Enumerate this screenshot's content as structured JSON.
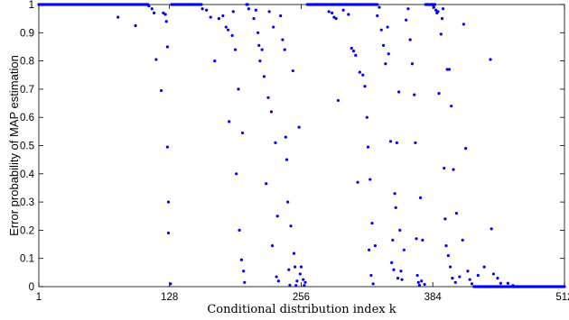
{
  "chart_data": {
    "type": "scatter",
    "title": "",
    "xlabel": "Conditional distribution index k",
    "ylabel": "Error probability of MAP estimation",
    "xlim": [
      1,
      512
    ],
    "ylim": [
      0,
      1
    ],
    "xticks": [
      1,
      128,
      256,
      384,
      512
    ],
    "yticks": [
      0,
      0.1,
      0.2,
      0.3,
      0.4,
      0.5,
      0.6,
      0.7,
      0.8,
      0.9,
      1
    ],
    "grid": false,
    "marker_color": "#0000ff",
    "series": [
      {
        "points": [
          [
            78,
            0.955
          ],
          [
            95,
            0.925
          ],
          [
            108,
            0.995
          ],
          [
            111,
            0.985
          ],
          [
            113,
            0.97
          ],
          [
            115,
            0.805
          ],
          [
            120,
            0.695
          ],
          [
            122,
            0.97
          ],
          [
            124,
            0.965
          ],
          [
            125,
            0.94
          ],
          [
            126,
            0.85
          ],
          [
            126,
            0.495
          ],
          [
            127,
            0.3
          ],
          [
            127,
            0.19
          ],
          [
            129,
            0.01
          ],
          [
            160,
            0.985
          ],
          [
            164,
            0.98
          ],
          [
            168,
            0.955
          ],
          [
            172,
            0.8
          ],
          [
            176,
            0.95
          ],
          [
            180,
            0.96
          ],
          [
            183,
            0.92
          ],
          [
            185,
            0.91
          ],
          [
            186,
            0.585
          ],
          [
            189,
            0.89
          ],
          [
            190,
            0.975
          ],
          [
            192,
            0.84
          ],
          [
            193,
            0.4
          ],
          [
            195,
            0.7
          ],
          [
            196,
            0.2
          ],
          [
            198,
            0.095
          ],
          [
            199,
            0.545
          ],
          [
            200,
            0.055
          ],
          [
            201,
            0.015
          ],
          [
            205,
            0.985
          ],
          [
            210,
            0.95
          ],
          [
            212,
            0.98
          ],
          [
            214,
            0.9
          ],
          [
            215,
            0.855
          ],
          [
            216,
            0.8
          ],
          [
            218,
            0.84
          ],
          [
            220,
            0.745
          ],
          [
            222,
            0.365
          ],
          [
            224,
            0.67
          ],
          [
            225,
            0.975
          ],
          [
            227,
            0.62
          ],
          [
            228,
            0.145
          ],
          [
            229,
            0.92
          ],
          [
            231,
            0.51
          ],
          [
            232,
            0.035
          ],
          [
            233,
            0.25
          ],
          [
            234,
            0.02
          ],
          [
            236,
            0.96
          ],
          [
            238,
            0.875
          ],
          [
            240,
            0.84
          ],
          [
            241,
            0.53
          ],
          [
            242,
            0.45
          ],
          [
            243,
            0.3
          ],
          [
            244,
            0.06
          ],
          [
            245,
            0.005
          ],
          [
            246,
            0.215
          ],
          [
            248,
            0.765
          ],
          [
            249,
            0.118
          ],
          [
            250,
            0.07
          ],
          [
            251,
            0.004
          ],
          [
            252,
            0.02
          ],
          [
            254,
            0.565
          ],
          [
            255,
            0.045
          ],
          [
            256,
            0.07
          ],
          [
            258,
            0.025
          ],
          [
            259,
            0.004
          ],
          [
            260,
            0.015
          ],
          [
            283,
            0.975
          ],
          [
            286,
            0.97
          ],
          [
            288,
            0.955
          ],
          [
            290,
            0.95
          ],
          [
            292,
            0.66
          ],
          [
            297,
            0.98
          ],
          [
            302,
            0.965
          ],
          [
            305,
            0.845
          ],
          [
            307,
            0.835
          ],
          [
            309,
            0.82
          ],
          [
            311,
            0.37
          ],
          [
            313,
            0.76
          ],
          [
            316,
            0.75
          ],
          [
            318,
            0.71
          ],
          [
            320,
            0.6
          ],
          [
            321,
            0.495
          ],
          [
            322,
            0.13
          ],
          [
            323,
            0.38
          ],
          [
            324,
            0.04
          ],
          [
            325,
            0.225
          ],
          [
            326,
            0.01
          ],
          [
            328,
            0.145
          ],
          [
            330,
            0.96
          ],
          [
            332,
            0.99
          ],
          [
            334,
            0.91
          ],
          [
            336,
            0.855
          ],
          [
            338,
            0.79
          ],
          [
            340,
            0.92
          ],
          [
            341,
            0.825
          ],
          [
            343,
            0.515
          ],
          [
            344,
            0.085
          ],
          [
            345,
            0.165
          ],
          [
            346,
            0.06
          ],
          [
            347,
            0.33
          ],
          [
            348,
            0.28
          ],
          [
            349,
            0.51
          ],
          [
            350,
            0.03
          ],
          [
            351,
            0.69
          ],
          [
            352,
            0.2
          ],
          [
            353,
            0.055
          ],
          [
            354,
            0.025
          ],
          [
            356,
            0.13
          ],
          [
            358,
            0.945
          ],
          [
            360,
            0.985
          ],
          [
            362,
            0.875
          ],
          [
            364,
            0.79
          ],
          [
            366,
            0.68
          ],
          [
            367,
            0.51
          ],
          [
            368,
            0.17
          ],
          [
            369,
            0.04
          ],
          [
            370,
            0.015
          ],
          [
            371,
            0.005
          ],
          [
            372,
            0.315
          ],
          [
            373,
            0.02
          ],
          [
            374,
            0.165
          ],
          [
            376,
            0.008
          ],
          [
            385,
            0.99
          ],
          [
            387,
            0.98
          ],
          [
            388,
            0.97
          ],
          [
            389,
            0.975
          ],
          [
            390,
            0.685
          ],
          [
            392,
            0.895
          ],
          [
            393,
            0.95
          ],
          [
            394,
            0.985
          ],
          [
            395,
            0.42
          ],
          [
            396,
            0.24
          ],
          [
            397,
            0.145
          ],
          [
            398,
            0.77
          ],
          [
            399,
            0.11
          ],
          [
            400,
            0.77
          ],
          [
            401,
            0.07
          ],
          [
            402,
            0.64
          ],
          [
            403,
            0.03
          ],
          [
            404,
            0.415
          ],
          [
            406,
            0.015
          ],
          [
            407,
            0.26
          ],
          [
            410,
            0.035
          ],
          [
            413,
            0.165
          ],
          [
            414,
            0.93
          ],
          [
            416,
            0.49
          ],
          [
            418,
            0.055
          ],
          [
            420,
            0.025
          ],
          [
            422,
            0.01
          ],
          [
            428,
            0.04
          ],
          [
            434,
            0.07
          ],
          [
            440,
            0.805
          ],
          [
            441,
            0.205
          ],
          [
            443,
            0.045
          ],
          [
            447,
            0.03
          ],
          [
            450,
            0.012
          ],
          [
            457,
            0.012
          ],
          [
            462,
            0.004
          ]
        ]
      }
    ]
  }
}
